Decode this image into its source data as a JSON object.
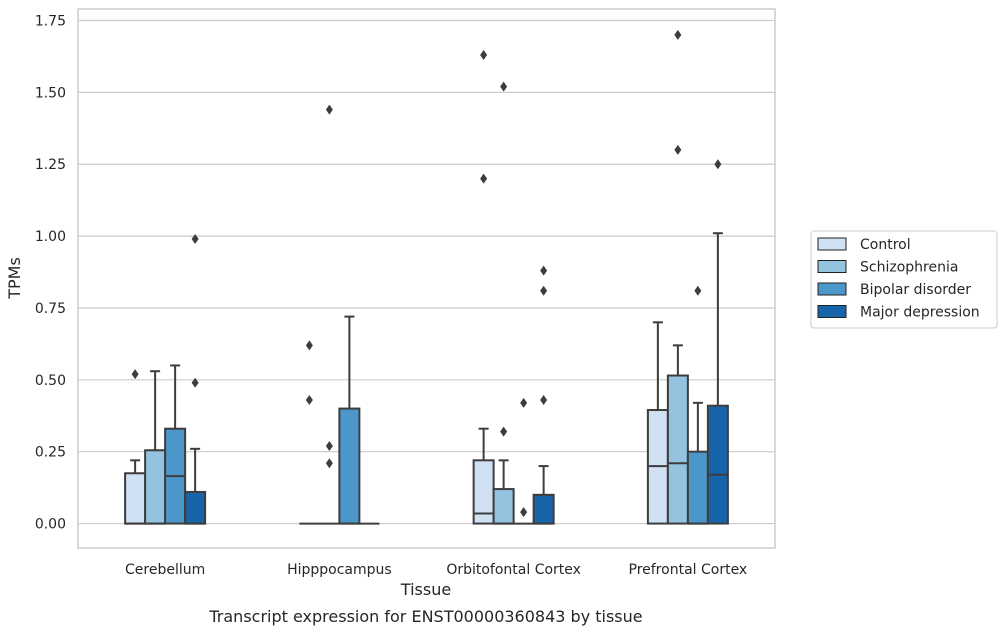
{
  "chart_data": {
    "type": "box",
    "xlabel": "Tissue",
    "ylabel": "TPMs",
    "caption": "Transcript expression for ENST00000360843 by tissue",
    "ylim": [
      -0.085,
      1.79
    ],
    "yticks": [
      0.0,
      0.25,
      0.5,
      0.75,
      1.0,
      1.25,
      1.5,
      1.75
    ],
    "ytick_labels": [
      "0.00",
      "0.25",
      "0.50",
      "0.75",
      "1.00",
      "1.25",
      "1.50",
      "1.75"
    ],
    "categories": [
      "Cerebellum",
      "Hipppocampus",
      "Orbitofontal Cortex",
      "Prefrontal Cortex"
    ],
    "grid": "horizontal",
    "legend_position": "right",
    "series": [
      {
        "name": "Control",
        "color": "#cfe1f2",
        "boxes": [
          {
            "q1": 0.0,
            "median": 0.0,
            "q3": 0.175,
            "whislo": 0.0,
            "whishi": 0.22,
            "fliers": [
              0.52
            ]
          },
          {
            "q1": 0.0,
            "median": 0.0,
            "q3": 0.0,
            "whislo": 0.0,
            "whishi": 0.0,
            "fliers": [
              0.62,
              0.43
            ]
          },
          {
            "q1": 0.0,
            "median": 0.035,
            "q3": 0.22,
            "whislo": 0.0,
            "whishi": 0.33,
            "fliers": [
              1.63,
              1.2
            ]
          },
          {
            "q1": 0.0,
            "median": 0.2,
            "q3": 0.395,
            "whislo": 0.0,
            "whishi": 0.7,
            "fliers": []
          }
        ]
      },
      {
        "name": "Schizophrenia",
        "color": "#93c3df",
        "boxes": [
          {
            "q1": 0.0,
            "median": 0.0,
            "q3": 0.255,
            "whislo": 0.0,
            "whishi": 0.53,
            "fliers": []
          },
          {
            "q1": 0.0,
            "median": 0.0,
            "q3": 0.0,
            "whislo": 0.0,
            "whishi": 0.0,
            "fliers": [
              1.44,
              0.27,
              0.21
            ]
          },
          {
            "q1": 0.0,
            "median": 0.0,
            "q3": 0.12,
            "whislo": 0.0,
            "whishi": 0.22,
            "fliers": [
              1.52,
              0.32
            ]
          },
          {
            "q1": 0.0,
            "median": 0.21,
            "q3": 0.515,
            "whislo": 0.0,
            "whishi": 0.62,
            "fliers": [
              1.7,
              1.3
            ]
          }
        ]
      },
      {
        "name": "Bipolar disorder",
        "color": "#4b97c9",
        "boxes": [
          {
            "q1": 0.0,
            "median": 0.165,
            "q3": 0.33,
            "whislo": 0.0,
            "whishi": 0.55,
            "fliers": []
          },
          {
            "q1": 0.0,
            "median": 0.0,
            "q3": 0.4,
            "whislo": 0.0,
            "whishi": 0.72,
            "fliers": []
          },
          {
            "q1": 0.0,
            "median": 0.0,
            "q3": 0.0,
            "whislo": 0.0,
            "whishi": 0.0,
            "fliers": [
              0.42,
              0.04
            ]
          },
          {
            "q1": 0.0,
            "median": 0.0,
            "q3": 0.25,
            "whislo": 0.0,
            "whishi": 0.42,
            "fliers": [
              0.81
            ]
          }
        ]
      },
      {
        "name": "Major depression",
        "color": "#1864aa",
        "boxes": [
          {
            "q1": 0.0,
            "median": 0.0,
            "q3": 0.11,
            "whislo": 0.0,
            "whishi": 0.26,
            "fliers": [
              0.99,
              0.49
            ]
          },
          {
            "q1": 0.0,
            "median": 0.0,
            "q3": 0.0,
            "whislo": 0.0,
            "whishi": 0.0,
            "fliers": []
          },
          {
            "q1": 0.0,
            "median": 0.0,
            "q3": 0.1,
            "whislo": 0.0,
            "whishi": 0.2,
            "fliers": [
              0.88,
              0.81,
              0.43
            ]
          },
          {
            "q1": 0.0,
            "median": 0.17,
            "q3": 0.41,
            "whislo": 0.0,
            "whishi": 1.01,
            "fliers": [
              1.25
            ]
          }
        ]
      }
    ]
  }
}
